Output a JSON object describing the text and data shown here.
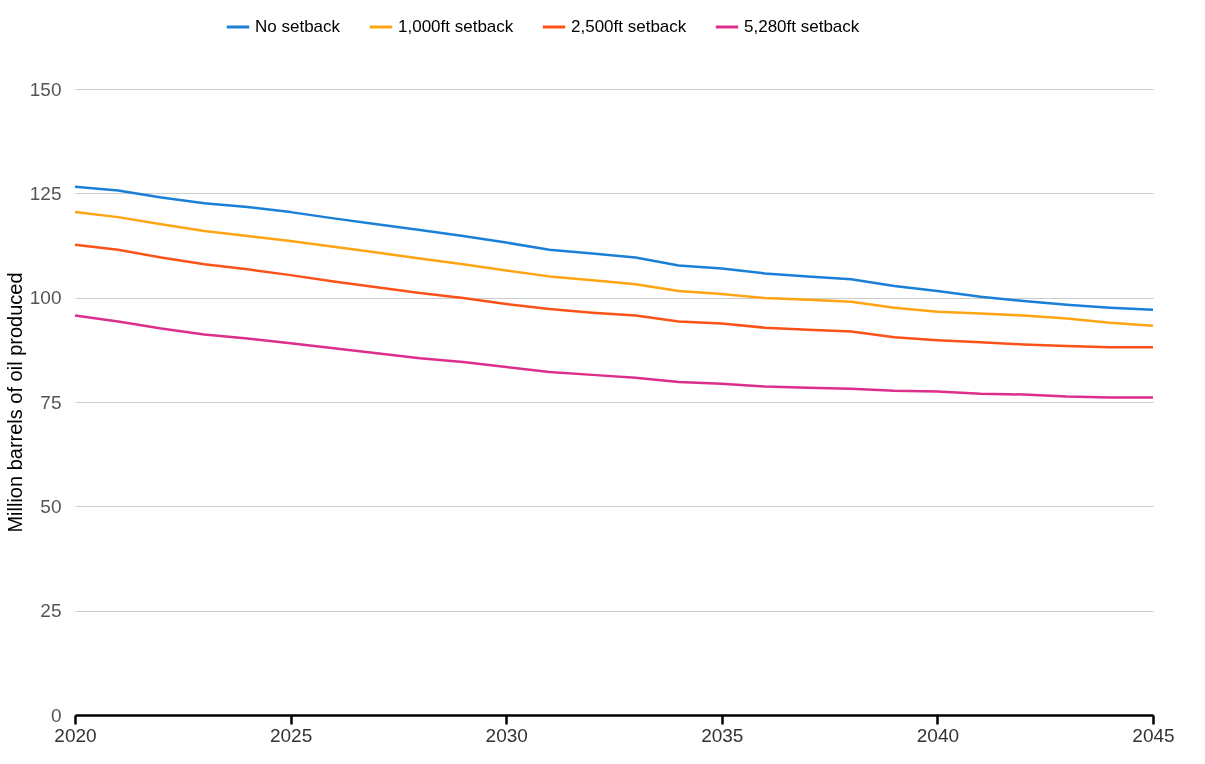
{
  "chart_data": {
    "type": "line",
    "ylabel": "Million barrels of oil produced",
    "x": [
      2020,
      2021,
      2022,
      2023,
      2024,
      2025,
      2026,
      2027,
      2028,
      2029,
      2030,
      2031,
      2032,
      2033,
      2034,
      2035,
      2036,
      2037,
      2038,
      2039,
      2040,
      2041,
      2042,
      2043,
      2044,
      2045
    ],
    "series": [
      {
        "name": "No setback",
        "color": "#1a7fd6",
        "values": [
          126.6,
          125.7,
          124,
          122.6,
          121.7,
          120.5,
          119,
          117.6,
          116.2,
          114.8,
          113.2,
          111.5,
          110.6,
          109.6,
          107.7,
          107,
          105.8,
          105.1,
          104.4,
          102.8,
          101.6,
          100.2,
          99.2,
          98.3,
          97.6,
          97.1
        ]
      },
      {
        "name": "1,000ft setback",
        "color": "#ffa514",
        "values": [
          120.5,
          119.3,
          117.6,
          116,
          114.8,
          113.6,
          112.2,
          110.8,
          109.4,
          108,
          106.5,
          105.1,
          104.2,
          103.2,
          101.6,
          100.9,
          99.9,
          99.5,
          99,
          97.6,
          96.6,
          96.2,
          95.7,
          95,
          94,
          93.3
        ]
      },
      {
        "name": "2,500ft setback",
        "color": "#fc5218",
        "values": [
          112.7,
          111.5,
          109.6,
          108,
          106.8,
          105.4,
          103.9,
          102.5,
          101.1,
          99.9,
          98.5,
          97.3,
          96.4,
          95.7,
          94.3,
          93.8,
          92.8,
          92.3,
          91.9,
          90.5,
          89.8,
          89.3,
          88.8,
          88.4,
          88.1,
          88.1
        ]
      },
      {
        "name": "5,280ft setback",
        "color": "#dd2e8c",
        "values": [
          95.7,
          94.3,
          92.6,
          91.2,
          90.2,
          89.1,
          87.9,
          86.7,
          85.5,
          84.6,
          83.4,
          82.2,
          81.5,
          80.8,
          79.8,
          79.4,
          78.7,
          78.4,
          78.2,
          77.7,
          77.5,
          77,
          76.8,
          76.3,
          76.1,
          76.1
        ]
      }
    ],
    "xlim": [
      2020,
      2045
    ],
    "xticks": [
      2020,
      2025,
      2030,
      2035,
      2040,
      2045
    ],
    "ylim": [
      0,
      150
    ],
    "yticks": [
      0,
      25,
      50,
      75,
      100,
      125,
      150
    ],
    "grid": "y",
    "legend": "top",
    "marker": "none",
    "line_style": "solid"
  }
}
